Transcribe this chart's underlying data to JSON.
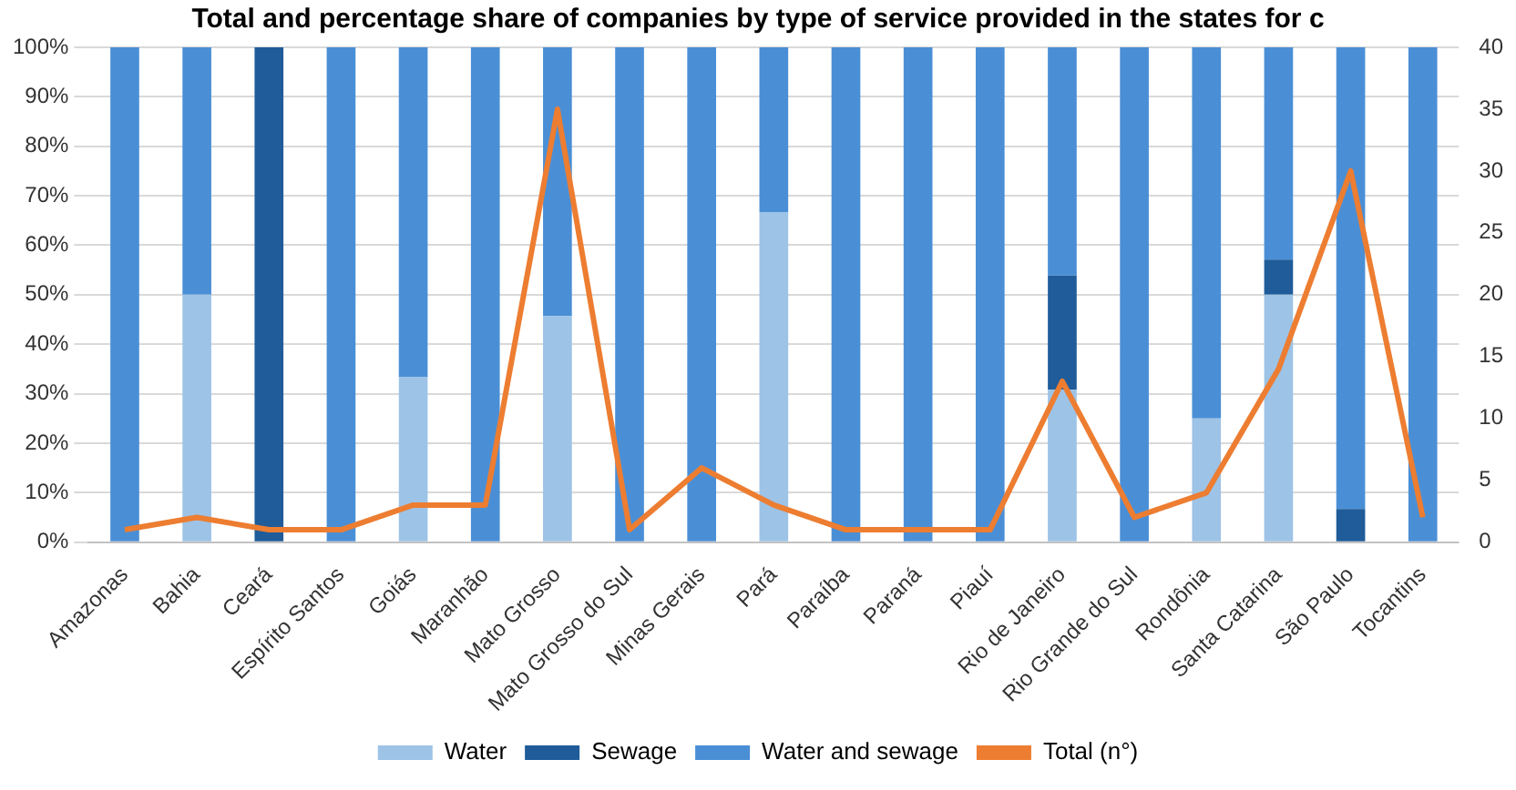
{
  "chart_data": {
    "type": "bar",
    "stacked": true,
    "title": "Total and percentage share of companies by type of service provided in the states for c",
    "categories": [
      "Amazonas",
      "Bahia",
      "Ceará",
      "Espírito Santos",
      "Goiás",
      "Maranhão",
      "Mato Grosso",
      "Mato Grosso do Sul",
      "Minas Gerais",
      "Pará",
      "Paraíba",
      "Paraná",
      "Piauí",
      "Rio de Janeiro",
      "Rio Grande do Sul",
      "Rondônia",
      "Santa Catarina",
      "São Paulo",
      "Tocantins"
    ],
    "series": [
      {
        "name": "Water",
        "color": "#9dc3e6",
        "values": [
          0,
          50,
          0,
          0,
          33.3,
          0,
          45.7,
          0,
          0,
          66.7,
          0,
          0,
          0,
          30.8,
          0,
          25,
          50,
          0,
          0
        ]
      },
      {
        "name": "Sewage",
        "color": "#1f5c99",
        "values": [
          0,
          0,
          100,
          0,
          0,
          0,
          0,
          0,
          0,
          0,
          0,
          0,
          0,
          23.1,
          0,
          0,
          7.1,
          6.7,
          0
        ]
      },
      {
        "name": "Water and sewage",
        "color": "#4a8fd6",
        "values": [
          100,
          50,
          0,
          100,
          66.7,
          100,
          54.3,
          100,
          100,
          33.3,
          100,
          100,
          100,
          46.2,
          100,
          75,
          42.9,
          93.3,
          100
        ]
      },
      {
        "name": "Total (n°)",
        "type": "line",
        "axis": "y2",
        "color": "#ed7d31",
        "values": [
          1,
          2,
          1,
          1,
          3,
          3,
          35,
          1,
          6,
          3,
          1,
          1,
          1,
          13,
          2,
          4,
          14,
          30,
          2
        ]
      }
    ],
    "ylim": [
      0,
      100
    ],
    "yticks": [
      {
        "value": 0,
        "label": "0%"
      },
      {
        "value": 10,
        "label": "10%"
      },
      {
        "value": 20,
        "label": "20%"
      },
      {
        "value": 30,
        "label": "30%"
      },
      {
        "value": 40,
        "label": "40%"
      },
      {
        "value": 50,
        "label": "50%"
      },
      {
        "value": 60,
        "label": "60%"
      },
      {
        "value": 70,
        "label": "70%"
      },
      {
        "value": 80,
        "label": "80%"
      },
      {
        "value": 90,
        "label": "90%"
      },
      {
        "value": 100,
        "label": "100%"
      }
    ],
    "y2lim": [
      0,
      40
    ],
    "y2ticks": [
      0,
      5,
      10,
      15,
      20,
      25,
      30,
      35,
      40
    ],
    "grid": "y",
    "legend": "bottom",
    "marker": "none"
  }
}
